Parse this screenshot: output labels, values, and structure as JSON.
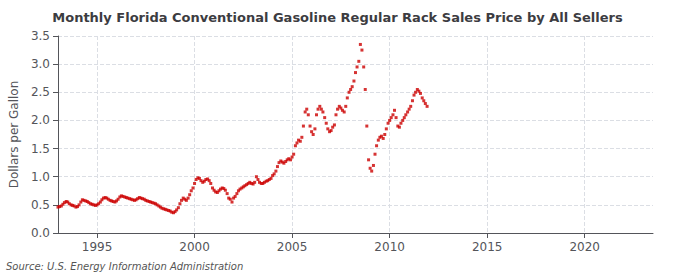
{
  "chart_data": {
    "type": "scatter",
    "title": "Monthly Florida Conventional Gasoline Regular Rack Sales Price by All Sellers",
    "ylabel": "Dollars per Gallon",
    "annotations": [
      "Source: U.S. Energy Information Administration"
    ],
    "color": "#cc0000",
    "marker": "square",
    "grid": true,
    "xlim": [
      1993.0,
      2023.5
    ],
    "xticks": [
      1995,
      2000,
      2005,
      2010,
      2015,
      2020
    ],
    "ylim": [
      0.0,
      3.5
    ],
    "yticks": [
      {
        "value": 0.0,
        "label": "0.0"
      },
      0.5,
      {
        "value": 1.0,
        "label": "1.0"
      },
      1.5,
      {
        "value": 2.0,
        "label": "2.0"
      },
      2.5,
      {
        "value": 3.0,
        "label": "3.0"
      },
      3.5
    ],
    "x": [
      1993.0,
      1993.08,
      1993.17,
      1993.25,
      1993.33,
      1993.42,
      1993.5,
      1993.58,
      1993.67,
      1993.75,
      1993.83,
      1993.92,
      1994.0,
      1994.08,
      1994.17,
      1994.25,
      1994.33,
      1994.42,
      1994.5,
      1994.58,
      1994.67,
      1994.75,
      1994.83,
      1994.92,
      1995.0,
      1995.08,
      1995.17,
      1995.25,
      1995.33,
      1995.42,
      1995.5,
      1995.58,
      1995.67,
      1995.75,
      1995.83,
      1995.92,
      1996.0,
      1996.08,
      1996.17,
      1996.25,
      1996.33,
      1996.42,
      1996.5,
      1996.58,
      1996.67,
      1996.75,
      1996.83,
      1996.92,
      1997.0,
      1997.08,
      1997.17,
      1997.25,
      1997.33,
      1997.42,
      1997.5,
      1997.58,
      1997.67,
      1997.75,
      1997.83,
      1997.92,
      1998.0,
      1998.08,
      1998.17,
      1998.25,
      1998.33,
      1998.42,
      1998.5,
      1998.58,
      1998.67,
      1998.75,
      1998.83,
      1998.92,
      1999.0,
      1999.08,
      1999.17,
      1999.25,
      1999.33,
      1999.42,
      1999.5,
      1999.58,
      1999.67,
      1999.75,
      1999.83,
      1999.92,
      2000.0,
      2000.08,
      2000.17,
      2000.25,
      2000.33,
      2000.42,
      2000.5,
      2000.58,
      2000.67,
      2000.75,
      2000.83,
      2000.92,
      2001.0,
      2001.08,
      2001.17,
      2001.25,
      2001.33,
      2001.42,
      2001.5,
      2001.58,
      2001.67,
      2001.75,
      2001.83,
      2001.92,
      2002.0,
      2002.08,
      2002.17,
      2002.25,
      2002.33,
      2002.42,
      2002.5,
      2002.58,
      2002.67,
      2002.75,
      2002.83,
      2002.92,
      2003.0,
      2003.08,
      2003.17,
      2003.25,
      2003.33,
      2003.42,
      2003.5,
      2003.58,
      2003.67,
      2003.75,
      2003.83,
      2003.92,
      2004.0,
      2004.08,
      2004.17,
      2004.25,
      2004.33,
      2004.42,
      2004.5,
      2004.58,
      2004.67,
      2004.75,
      2004.83,
      2004.92,
      2005.0,
      2005.08,
      2005.17,
      2005.25,
      2005.33,
      2005.42,
      2005.5,
      2005.58,
      2005.67,
      2005.75,
      2005.83,
      2005.92,
      2006.0,
      2006.08,
      2006.17,
      2006.25,
      2006.33,
      2006.42,
      2006.5,
      2006.58,
      2006.67,
      2006.75,
      2006.83,
      2006.92,
      2007.0,
      2007.08,
      2007.17,
      2007.25,
      2007.33,
      2007.42,
      2007.5,
      2007.58,
      2007.67,
      2007.75,
      2007.83,
      2007.92,
      2008.0,
      2008.08,
      2008.17,
      2008.25,
      2008.33,
      2008.42,
      2008.5,
      2008.58,
      2008.67,
      2008.75,
      2008.83,
      2008.92,
      2009.0,
      2009.08,
      2009.17,
      2009.25,
      2009.33,
      2009.42,
      2009.5,
      2009.58,
      2009.67,
      2009.75,
      2009.83,
      2009.92,
      2010.0,
      2010.08,
      2010.17,
      2010.25,
      2010.33,
      2010.42,
      2010.5,
      2010.58,
      2010.67,
      2010.75,
      2010.83,
      2010.92,
      2011.0,
      2011.08,
      2011.17,
      2011.25,
      2011.33,
      2011.42,
      2011.5,
      2011.58,
      2011.67,
      2011.75,
      2011.83,
      2011.92
    ],
    "values": [
      0.46,
      0.47,
      0.48,
      0.51,
      0.54,
      0.56,
      0.55,
      0.52,
      0.5,
      0.49,
      0.48,
      0.46,
      0.47,
      0.5,
      0.55,
      0.59,
      0.58,
      0.57,
      0.56,
      0.54,
      0.52,
      0.51,
      0.5,
      0.49,
      0.5,
      0.52,
      0.55,
      0.59,
      0.62,
      0.63,
      0.62,
      0.6,
      0.58,
      0.57,
      0.56,
      0.55,
      0.57,
      0.6,
      0.64,
      0.66,
      0.65,
      0.64,
      0.63,
      0.62,
      0.61,
      0.6,
      0.59,
      0.58,
      0.59,
      0.61,
      0.63,
      0.62,
      0.61,
      0.6,
      0.58,
      0.57,
      0.56,
      0.55,
      0.54,
      0.53,
      0.52,
      0.5,
      0.48,
      0.46,
      0.44,
      0.43,
      0.42,
      0.41,
      0.4,
      0.39,
      0.37,
      0.36,
      0.38,
      0.41,
      0.45,
      0.52,
      0.58,
      0.62,
      0.6,
      0.58,
      0.62,
      0.68,
      0.75,
      0.8,
      0.88,
      0.95,
      0.98,
      0.97,
      0.93,
      0.9,
      0.92,
      0.95,
      0.96,
      0.93,
      0.88,
      0.8,
      0.76,
      0.73,
      0.72,
      0.75,
      0.78,
      0.8,
      0.79,
      0.76,
      0.7,
      0.62,
      0.6,
      0.55,
      0.62,
      0.65,
      0.7,
      0.75,
      0.78,
      0.8,
      0.82,
      0.84,
      0.86,
      0.88,
      0.9,
      0.88,
      0.87,
      0.9,
      1.0,
      0.95,
      0.9,
      0.88,
      0.88,
      0.9,
      0.92,
      0.93,
      0.95,
      0.97,
      1.02,
      1.05,
      1.1,
      1.18,
      1.25,
      1.28,
      1.26,
      1.24,
      1.27,
      1.3,
      1.32,
      1.3,
      1.35,
      1.4,
      1.55,
      1.6,
      1.65,
      1.63,
      1.7,
      1.9,
      2.15,
      2.2,
      2.1,
      1.9,
      1.8,
      1.75,
      1.85,
      2.1,
      2.2,
      2.25,
      2.2,
      2.15,
      2.05,
      1.95,
      1.85,
      1.8,
      1.82,
      1.88,
      1.92,
      2.1,
      2.2,
      2.25,
      2.22,
      2.18,
      2.15,
      2.25,
      2.4,
      2.5,
      2.55,
      2.6,
      2.7,
      2.85,
      2.95,
      3.05,
      3.35,
      3.25,
      2.95,
      2.55,
      1.9,
      1.3,
      1.15,
      1.1,
      1.2,
      1.4,
      1.55,
      1.65,
      1.7,
      1.72,
      1.68,
      1.75,
      1.85,
      1.95,
      2.0,
      2.05,
      2.1,
      2.18,
      2.05,
      1.9,
      1.88,
      1.95,
      2.0,
      2.05,
      2.1,
      2.15,
      2.2,
      2.25,
      2.35,
      2.45,
      2.5,
      2.55,
      2.52,
      2.48,
      2.4,
      2.35,
      2.3,
      2.25
    ]
  }
}
